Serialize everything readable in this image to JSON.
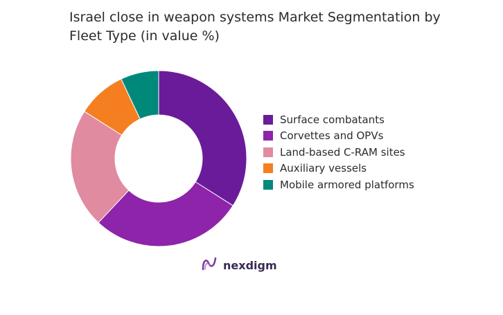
{
  "title": "Israel close in weapon systems Market Segmentation by Fleet Type (in value %)",
  "brand": {
    "name": "nexdigm",
    "logo_icon": "nexdigm-logo-icon"
  },
  "colors": {
    "surface_combatants": "#6a1b9a",
    "corvettes_opvs": "#8e24aa",
    "land_cram": "#e08ba0",
    "auxiliary": "#f57f20",
    "mobile_armored": "#00897b"
  },
  "chart_data": {
    "type": "pie",
    "donut": true,
    "legend_position": "right",
    "categories": [
      "Surface combatants",
      "Corvettes and OPVs",
      "Land-based C-RAM sites",
      "Auxiliary vessels",
      "Mobile armored platforms"
    ],
    "values": [
      34,
      28,
      22,
      9,
      7
    ],
    "colors": [
      "#6a1b9a",
      "#8e24aa",
      "#e08ba0",
      "#f57f20",
      "#00897b"
    ]
  }
}
